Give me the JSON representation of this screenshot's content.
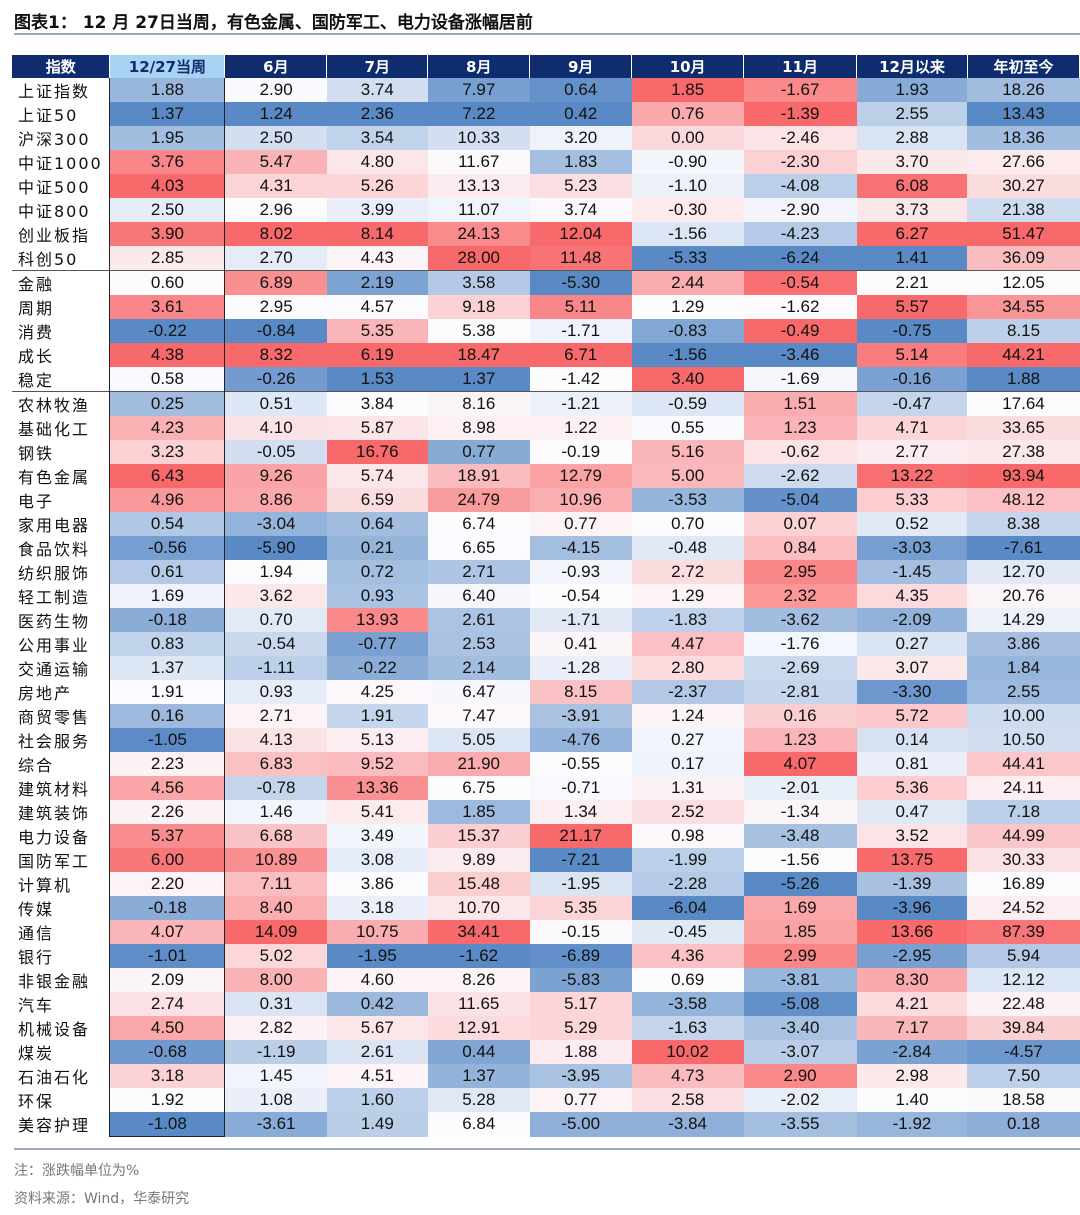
{
  "title": "图表1： 12 月 27日当周，有色金属、国防军工、电力设备涨幅居前",
  "note": "注：涨跌幅单位为%",
  "source": "资料来源：Wind，华泰研究",
  "colors": {
    "low": "#5a8ac6",
    "mid": "#fcfcff",
    "high": "#f8696b",
    "header": "#0f2d6e",
    "header_highlight": "#a9d3f2"
  },
  "chart_data": {
    "type": "heatmap",
    "color_scale": "per column within each row group: blue (min) – white (median) – red (max)",
    "columns": [
      "指数",
      "12/27当周",
      "6月",
      "7月",
      "8月",
      "9月",
      "10月",
      "11月",
      "12月以来",
      "年初至今"
    ],
    "groups": [
      [
        [
          "上证指数",
          1.88,
          2.9,
          3.74,
          7.97,
          0.64,
          1.85,
          -1.67,
          1.93,
          18.26
        ],
        [
          "上证50",
          1.37,
          1.24,
          2.36,
          7.22,
          0.42,
          0.76,
          -1.39,
          2.55,
          13.43
        ],
        [
          "沪深300",
          1.95,
          2.5,
          3.54,
          10.33,
          3.2,
          0.0,
          -2.46,
          2.88,
          18.36
        ],
        [
          "中证1000",
          3.76,
          5.47,
          4.8,
          11.67,
          1.83,
          -0.9,
          -2.3,
          3.7,
          27.66
        ],
        [
          "中证500",
          4.03,
          4.31,
          5.26,
          13.13,
          5.23,
          -1.1,
          -4.08,
          6.08,
          30.27
        ],
        [
          "中证800",
          2.5,
          2.96,
          3.99,
          11.07,
          3.74,
          -0.3,
          -2.9,
          3.73,
          21.38
        ],
        [
          "创业板指",
          3.9,
          8.02,
          8.14,
          24.13,
          12.04,
          -1.56,
          -4.23,
          6.27,
          51.47
        ],
        [
          "科创50",
          2.85,
          2.7,
          4.43,
          28.0,
          11.48,
          -5.33,
          -6.24,
          1.41,
          36.09
        ]
      ],
      [
        [
          "金融",
          0.6,
          6.89,
          2.19,
          3.58,
          -5.3,
          2.44,
          -0.54,
          2.21,
          12.05
        ],
        [
          "周期",
          3.61,
          2.95,
          4.57,
          9.18,
          5.11,
          1.29,
          -1.62,
          5.57,
          34.55
        ],
        [
          "消费",
          -0.22,
          -0.84,
          5.35,
          5.38,
          -1.71,
          -0.83,
          -0.49,
          -0.75,
          8.15
        ],
        [
          "成长",
          4.38,
          8.32,
          6.19,
          18.47,
          6.71,
          -1.56,
          -3.46,
          5.14,
          44.21
        ],
        [
          "稳定",
          0.58,
          -0.26,
          1.53,
          1.37,
          -1.42,
          3.4,
          -1.69,
          -0.16,
          1.88
        ]
      ],
      [
        [
          "农林牧渔",
          0.25,
          0.51,
          3.84,
          8.16,
          -1.21,
          -0.59,
          1.51,
          -0.47,
          17.64
        ],
        [
          "基础化工",
          4.23,
          4.1,
          5.87,
          8.98,
          1.22,
          0.55,
          1.23,
          4.71,
          33.65
        ],
        [
          "钢铁",
          3.23,
          -0.05,
          16.76,
          0.77,
          -0.19,
          5.16,
          -0.62,
          2.77,
          27.38
        ],
        [
          "有色金属",
          6.43,
          9.26,
          5.74,
          18.91,
          12.79,
          5.0,
          -2.62,
          13.22,
          93.94
        ],
        [
          "电子",
          4.96,
          8.86,
          6.59,
          24.79,
          10.96,
          -3.53,
          -5.04,
          5.33,
          48.12
        ],
        [
          "家用电器",
          0.54,
          -3.04,
          0.64,
          6.74,
          0.77,
          0.7,
          0.07,
          0.52,
          8.38
        ],
        [
          "食品饮料",
          -0.56,
          -5.9,
          0.21,
          6.65,
          -4.15,
          -0.48,
          0.84,
          -3.03,
          -7.61
        ],
        [
          "纺织服饰",
          0.61,
          1.94,
          0.72,
          2.71,
          -0.93,
          2.72,
          2.95,
          -1.45,
          12.7
        ],
        [
          "轻工制造",
          1.69,
          3.62,
          0.93,
          6.4,
          -0.54,
          1.29,
          2.32,
          4.35,
          20.76
        ],
        [
          "医药生物",
          -0.18,
          0.7,
          13.93,
          2.61,
          -1.71,
          -1.83,
          -3.62,
          -2.09,
          14.29
        ],
        [
          "公用事业",
          0.83,
          -0.54,
          -0.77,
          2.53,
          0.41,
          4.47,
          -1.76,
          0.27,
          3.86
        ],
        [
          "交通运输",
          1.37,
          -1.11,
          -0.22,
          2.14,
          -1.28,
          2.8,
          -2.69,
          3.07,
          1.84
        ],
        [
          "房地产",
          1.91,
          0.93,
          4.25,
          6.47,
          8.15,
          -2.37,
          -2.81,
          -3.3,
          2.55
        ],
        [
          "商贸零售",
          0.16,
          2.71,
          1.91,
          7.47,
          -3.91,
          1.24,
          0.16,
          5.72,
          10.0
        ],
        [
          "社会服务",
          -1.05,
          4.13,
          5.13,
          5.05,
          -4.76,
          0.27,
          1.23,
          0.14,
          10.5
        ],
        [
          "综合",
          2.23,
          6.83,
          9.52,
          21.9,
          -0.55,
          0.17,
          4.07,
          0.81,
          44.41
        ],
        [
          "建筑材料",
          4.56,
          -0.78,
          13.36,
          6.75,
          -0.71,
          1.31,
          -2.01,
          5.36,
          24.11
        ],
        [
          "建筑装饰",
          2.26,
          1.46,
          5.41,
          1.85,
          1.34,
          2.52,
          -1.34,
          0.47,
          7.18
        ],
        [
          "电力设备",
          5.37,
          6.68,
          3.49,
          15.37,
          21.17,
          0.98,
          -3.48,
          3.52,
          44.99
        ],
        [
          "国防军工",
          6.0,
          10.89,
          3.08,
          9.89,
          -7.21,
          -1.99,
          -1.56,
          13.75,
          30.33
        ],
        [
          "计算机",
          2.2,
          7.11,
          3.86,
          15.48,
          -1.95,
          -2.28,
          -5.26,
          -1.39,
          16.89
        ],
        [
          "传媒",
          -0.18,
          8.4,
          3.18,
          10.7,
          5.35,
          -6.04,
          1.69,
          -3.96,
          24.52
        ],
        [
          "通信",
          4.07,
          14.09,
          10.75,
          34.41,
          -0.15,
          -0.45,
          1.85,
          13.66,
          87.39
        ],
        [
          "银行",
          -1.01,
          5.02,
          -1.95,
          -1.62,
          -6.89,
          4.36,
          2.99,
          -2.95,
          5.94
        ],
        [
          "非银金融",
          2.09,
          8.0,
          4.6,
          8.26,
          -5.83,
          0.69,
          -3.81,
          8.3,
          12.12
        ],
        [
          "汽车",
          2.74,
          0.31,
          0.42,
          11.65,
          5.17,
          -3.58,
          -5.08,
          4.21,
          22.48
        ],
        [
          "机械设备",
          4.5,
          2.82,
          5.67,
          12.91,
          5.29,
          -1.63,
          -3.4,
          7.17,
          39.84
        ],
        [
          "煤炭",
          -0.68,
          -1.19,
          2.61,
          0.44,
          1.88,
          10.02,
          -3.07,
          -2.84,
          -4.57
        ],
        [
          "石油石化",
          3.18,
          1.45,
          4.51,
          1.37,
          -3.95,
          4.73,
          2.9,
          2.98,
          7.5
        ],
        [
          "环保",
          1.92,
          1.08,
          1.6,
          5.28,
          0.77,
          2.58,
          -2.02,
          1.4,
          18.58
        ],
        [
          "美容护理",
          -1.08,
          -3.61,
          1.49,
          6.84,
          -5.0,
          -3.84,
          -3.55,
          -1.92,
          0.18
        ]
      ]
    ]
  }
}
